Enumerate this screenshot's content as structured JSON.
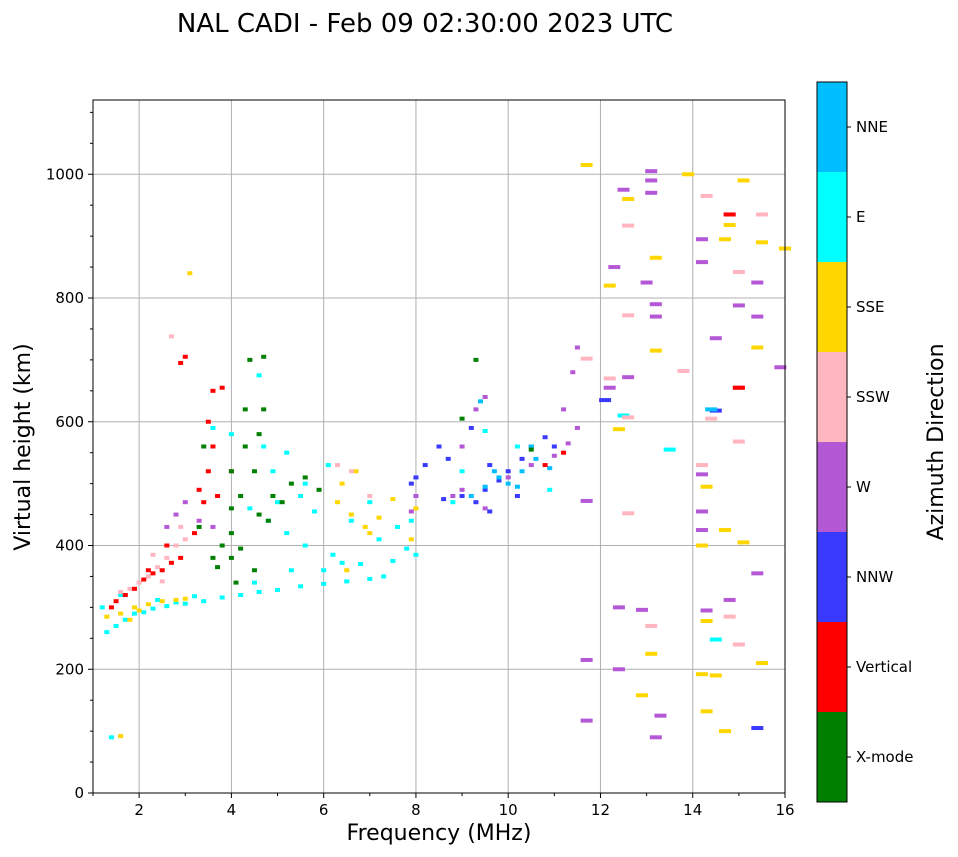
{
  "chart_data": {
    "type": "scatter",
    "title": "NAL CADI - Feb 09 02:30:00 2023 UTC",
    "xlabel": "Frequency (MHz)",
    "ylabel": "Virtual height (km)",
    "xlim": [
      1,
      16
    ],
    "ylim": [
      0,
      1120
    ],
    "x_ticks": [
      2,
      4,
      6,
      8,
      10,
      12,
      14,
      16
    ],
    "x_tick_labels": [
      "2",
      "4",
      "6",
      "8",
      "10",
      "12",
      "14",
      "16"
    ],
    "y_ticks": [
      0,
      200,
      400,
      600,
      800,
      1000
    ],
    "y_tick_labels": [
      "0",
      "200",
      "400",
      "600",
      "800",
      "1000"
    ],
    "grid": true,
    "colorbar": {
      "label": "Azimuth Direction",
      "categories": [
        "X-mode",
        "Vertical",
        "NNW",
        "W",
        "SSW",
        "SSE",
        "E",
        "NNE"
      ],
      "colors": [
        "#008000",
        "#ff0000",
        "#3a3aff",
        "#b558d6",
        "#ffb6c1",
        "#ffd700",
        "#00ffff",
        "#00bfff"
      ]
    },
    "series": [
      {
        "name": "E",
        "points": [
          [
            1.3,
            260
          ],
          [
            1.5,
            270
          ],
          [
            1.7,
            280
          ],
          [
            1.9,
            290
          ],
          [
            2.1,
            292
          ],
          [
            2.3,
            298
          ],
          [
            2.6,
            302
          ],
          [
            3.0,
            306
          ],
          [
            3.4,
            310
          ],
          [
            3.8,
            316
          ],
          [
            4.2,
            320
          ],
          [
            4.6,
            325
          ],
          [
            5.0,
            328
          ],
          [
            5.5,
            334
          ],
          [
            6.0,
            338
          ],
          [
            6.5,
            342
          ],
          [
            7.0,
            346
          ],
          [
            7.3,
            350
          ],
          [
            6.8,
            370
          ],
          [
            6.2,
            385
          ],
          [
            5.6,
            400
          ],
          [
            5.2,
            420
          ],
          [
            4.8,
            440
          ],
          [
            4.4,
            460
          ],
          [
            5.0,
            470
          ],
          [
            5.8,
            455
          ],
          [
            6.6,
            440
          ],
          [
            7.2,
            410
          ],
          [
            7.6,
            430
          ],
          [
            7.8,
            395
          ],
          [
            4.0,
            580
          ],
          [
            4.6,
            675
          ],
          [
            5.6,
            500
          ],
          [
            6.0,
            360
          ],
          [
            1.4,
            90
          ],
          [
            10.9,
            490
          ],
          [
            13.5,
            555
          ],
          [
            12.5,
            610
          ],
          [
            14.5,
            248
          ],
          [
            7.0,
            470
          ],
          [
            5.5,
            480
          ],
          [
            4.9,
            520
          ],
          [
            3.6,
            590
          ],
          [
            1.2,
            300
          ],
          [
            1.6,
            320
          ],
          [
            2.4,
            312
          ],
          [
            2.8,
            308
          ],
          [
            3.2,
            318
          ],
          [
            4.5,
            340
          ],
          [
            5.3,
            360
          ],
          [
            6.4,
            372
          ],
          [
            7.5,
            375
          ],
          [
            8.0,
            385
          ],
          [
            7.9,
            440
          ],
          [
            8.8,
            470
          ],
          [
            9.0,
            520
          ],
          [
            9.5,
            585
          ],
          [
            10.2,
            560
          ],
          [
            6.1,
            530
          ],
          [
            5.2,
            550
          ],
          [
            4.7,
            560
          ]
        ]
      },
      {
        "name": "SSE",
        "points": [
          [
            1.3,
            285
          ],
          [
            1.6,
            290
          ],
          [
            1.9,
            300
          ],
          [
            2.2,
            305
          ],
          [
            2.5,
            310
          ],
          [
            2.8,
            312
          ],
          [
            1.8,
            280
          ],
          [
            2.0,
            295
          ],
          [
            3.0,
            314
          ],
          [
            6.5,
            360
          ],
          [
            7.0,
            420
          ],
          [
            6.6,
            450
          ],
          [
            7.2,
            445
          ],
          [
            6.4,
            500
          ],
          [
            6.7,
            520
          ],
          [
            7.5,
            475
          ],
          [
            8.0,
            460
          ],
          [
            7.9,
            410
          ],
          [
            6.9,
            430
          ],
          [
            6.3,
            470
          ],
          [
            12.4,
            588
          ],
          [
            12.2,
            820
          ],
          [
            12.6,
            960
          ],
          [
            13.2,
            715
          ],
          [
            13.2,
            865
          ],
          [
            13.9,
            1000
          ],
          [
            14.2,
            400
          ],
          [
            14.3,
            495
          ],
          [
            14.7,
            425
          ],
          [
            14.7,
            895
          ],
          [
            15.1,
            990
          ],
          [
            15.1,
            405
          ],
          [
            15.4,
            720
          ],
          [
            15.5,
            890
          ],
          [
            15.5,
            210
          ],
          [
            14.5,
            190
          ],
          [
            14.2,
            192
          ],
          [
            13.1,
            225
          ],
          [
            12.9,
            158
          ],
          [
            14.7,
            100
          ],
          [
            14.8,
            918
          ],
          [
            15.0,
            655
          ],
          [
            16.0,
            880
          ],
          [
            1.6,
            92
          ],
          [
            11.7,
            1015
          ],
          [
            14.3,
            278
          ],
          [
            14.3,
            132
          ],
          [
            3.1,
            840
          ]
        ]
      },
      {
        "name": "SSW",
        "points": [
          [
            1.6,
            325
          ],
          [
            1.8,
            330
          ],
          [
            2.0,
            340
          ],
          [
            2.2,
            350
          ],
          [
            2.4,
            365
          ],
          [
            2.6,
            380
          ],
          [
            2.8,
            400
          ],
          [
            3.0,
            410
          ],
          [
            2.7,
            738
          ],
          [
            2.5,
            342
          ],
          [
            2.3,
            385
          ],
          [
            2.9,
            430
          ],
          [
            6.3,
            530
          ],
          [
            6.6,
            520
          ],
          [
            7.0,
            480
          ],
          [
            12.6,
            607
          ],
          [
            12.6,
            772
          ],
          [
            12.6,
            917
          ],
          [
            13.1,
            270
          ],
          [
            14.2,
            530
          ],
          [
            14.4,
            605
          ],
          [
            14.8,
            285
          ],
          [
            15.0,
            568
          ],
          [
            15.0,
            240
          ],
          [
            15.0,
            842
          ],
          [
            15.5,
            935
          ],
          [
            13.8,
            682
          ],
          [
            11.7,
            702
          ],
          [
            14.3,
            965
          ],
          [
            12.6,
            452
          ],
          [
            12.2,
            670
          ]
        ]
      },
      {
        "name": "W",
        "points": [
          [
            2.6,
            430
          ],
          [
            2.8,
            450
          ],
          [
            3.0,
            470
          ],
          [
            3.3,
            440
          ],
          [
            3.6,
            430
          ],
          [
            7.9,
            455
          ],
          [
            8.0,
            480
          ],
          [
            8.8,
            480
          ],
          [
            9.0,
            490
          ],
          [
            9.5,
            460
          ],
          [
            10.0,
            510
          ],
          [
            10.5,
            530
          ],
          [
            11.0,
            545
          ],
          [
            11.3,
            565
          ],
          [
            11.5,
            590
          ],
          [
            11.2,
            620
          ],
          [
            11.4,
            680
          ],
          [
            11.5,
            720
          ],
          [
            12.5,
            975
          ],
          [
            13.1,
            1005
          ],
          [
            13.1,
            970
          ],
          [
            13.0,
            825
          ],
          [
            13.2,
            790
          ],
          [
            13.2,
            770
          ],
          [
            13.1,
            990
          ],
          [
            14.2,
            895
          ],
          [
            14.2,
            858
          ],
          [
            14.5,
            735
          ],
          [
            14.8,
            935
          ],
          [
            15.0,
            788
          ],
          [
            15.0,
            655
          ],
          [
            15.4,
            825
          ],
          [
            15.4,
            770
          ],
          [
            15.9,
            688
          ],
          [
            15.4,
            355
          ],
          [
            14.8,
            312
          ],
          [
            14.2,
            455
          ],
          [
            14.2,
            425
          ],
          [
            14.2,
            515
          ],
          [
            14.3,
            295
          ],
          [
            13.3,
            125
          ],
          [
            13.2,
            90
          ],
          [
            12.4,
            200
          ],
          [
            12.4,
            300
          ],
          [
            12.9,
            296
          ],
          [
            12.6,
            672
          ],
          [
            12.3,
            850
          ],
          [
            11.7,
            215
          ],
          [
            11.7,
            117
          ],
          [
            11.7,
            472
          ],
          [
            12.2,
            655
          ],
          [
            9.0,
            560
          ],
          [
            9.3,
            620
          ],
          [
            9.5,
            640
          ]
        ]
      },
      {
        "name": "NNW",
        "points": [
          [
            7.9,
            500
          ],
          [
            8.2,
            530
          ],
          [
            8.5,
            560
          ],
          [
            8.6,
            475
          ],
          [
            9.0,
            480
          ],
          [
            9.3,
            470
          ],
          [
            9.5,
            490
          ],
          [
            9.8,
            505
          ],
          [
            10.0,
            520
          ],
          [
            10.3,
            540
          ],
          [
            10.5,
            560
          ],
          [
            10.8,
            575
          ],
          [
            11.0,
            560
          ],
          [
            10.2,
            480
          ],
          [
            9.6,
            455
          ],
          [
            12.1,
            635
          ],
          [
            14.5,
            618
          ],
          [
            15.4,
            105
          ],
          [
            8.0,
            510
          ],
          [
            8.7,
            540
          ],
          [
            9.2,
            590
          ],
          [
            9.6,
            530
          ]
        ]
      },
      {
        "name": "NNE",
        "points": [
          [
            9.2,
            480
          ],
          [
            9.5,
            495
          ],
          [
            9.8,
            510
          ],
          [
            10.0,
            500
          ],
          [
            10.3,
            520
          ],
          [
            10.6,
            540
          ],
          [
            10.2,
            495
          ],
          [
            9.4,
            633
          ],
          [
            10.5,
            560
          ],
          [
            9.7,
            520
          ],
          [
            10.9,
            525
          ],
          [
            14.4,
            620
          ]
        ]
      },
      {
        "name": "Vertical",
        "points": [
          [
            1.5,
            310
          ],
          [
            1.7,
            320
          ],
          [
            1.9,
            330
          ],
          [
            2.1,
            345
          ],
          [
            2.3,
            355
          ],
          [
            2.5,
            360
          ],
          [
            2.7,
            372
          ],
          [
            2.9,
            380
          ],
          [
            3.2,
            420
          ],
          [
            3.4,
            470
          ],
          [
            3.5,
            520
          ],
          [
            3.6,
            560
          ],
          [
            3.6,
            650
          ],
          [
            3.8,
            655
          ],
          [
            3.0,
            705
          ],
          [
            2.9,
            695
          ],
          [
            2.6,
            400
          ],
          [
            3.3,
            490
          ],
          [
            3.5,
            600
          ],
          [
            4.0,
            520
          ],
          [
            10.8,
            530
          ],
          [
            11.2,
            550
          ],
          [
            14.8,
            935
          ],
          [
            15.0,
            655
          ],
          [
            1.4,
            300
          ],
          [
            2.2,
            360
          ],
          [
            3.7,
            480
          ]
        ]
      },
      {
        "name": "X-mode",
        "points": [
          [
            3.3,
            430
          ],
          [
            3.6,
            380
          ],
          [
            3.8,
            400
          ],
          [
            4.0,
            420
          ],
          [
            4.0,
            460
          ],
          [
            4.0,
            520
          ],
          [
            4.2,
            480
          ],
          [
            4.3,
            560
          ],
          [
            4.3,
            620
          ],
          [
            4.5,
            520
          ],
          [
            4.6,
            580
          ],
          [
            4.6,
            450
          ],
          [
            4.7,
            620
          ],
          [
            4.8,
            440
          ],
          [
            4.4,
            700
          ],
          [
            4.7,
            705
          ],
          [
            4.0,
            380
          ],
          [
            3.4,
            560
          ],
          [
            4.5,
            360
          ],
          [
            4.2,
            395
          ],
          [
            9.3,
            700
          ],
          [
            9.0,
            605
          ],
          [
            10.5,
            555
          ],
          [
            4.9,
            480
          ],
          [
            5.1,
            470
          ],
          [
            5.3,
            500
          ],
          [
            5.6,
            510
          ],
          [
            5.9,
            490
          ],
          [
            4.1,
            340
          ],
          [
            3.7,
            365
          ]
        ]
      }
    ]
  }
}
